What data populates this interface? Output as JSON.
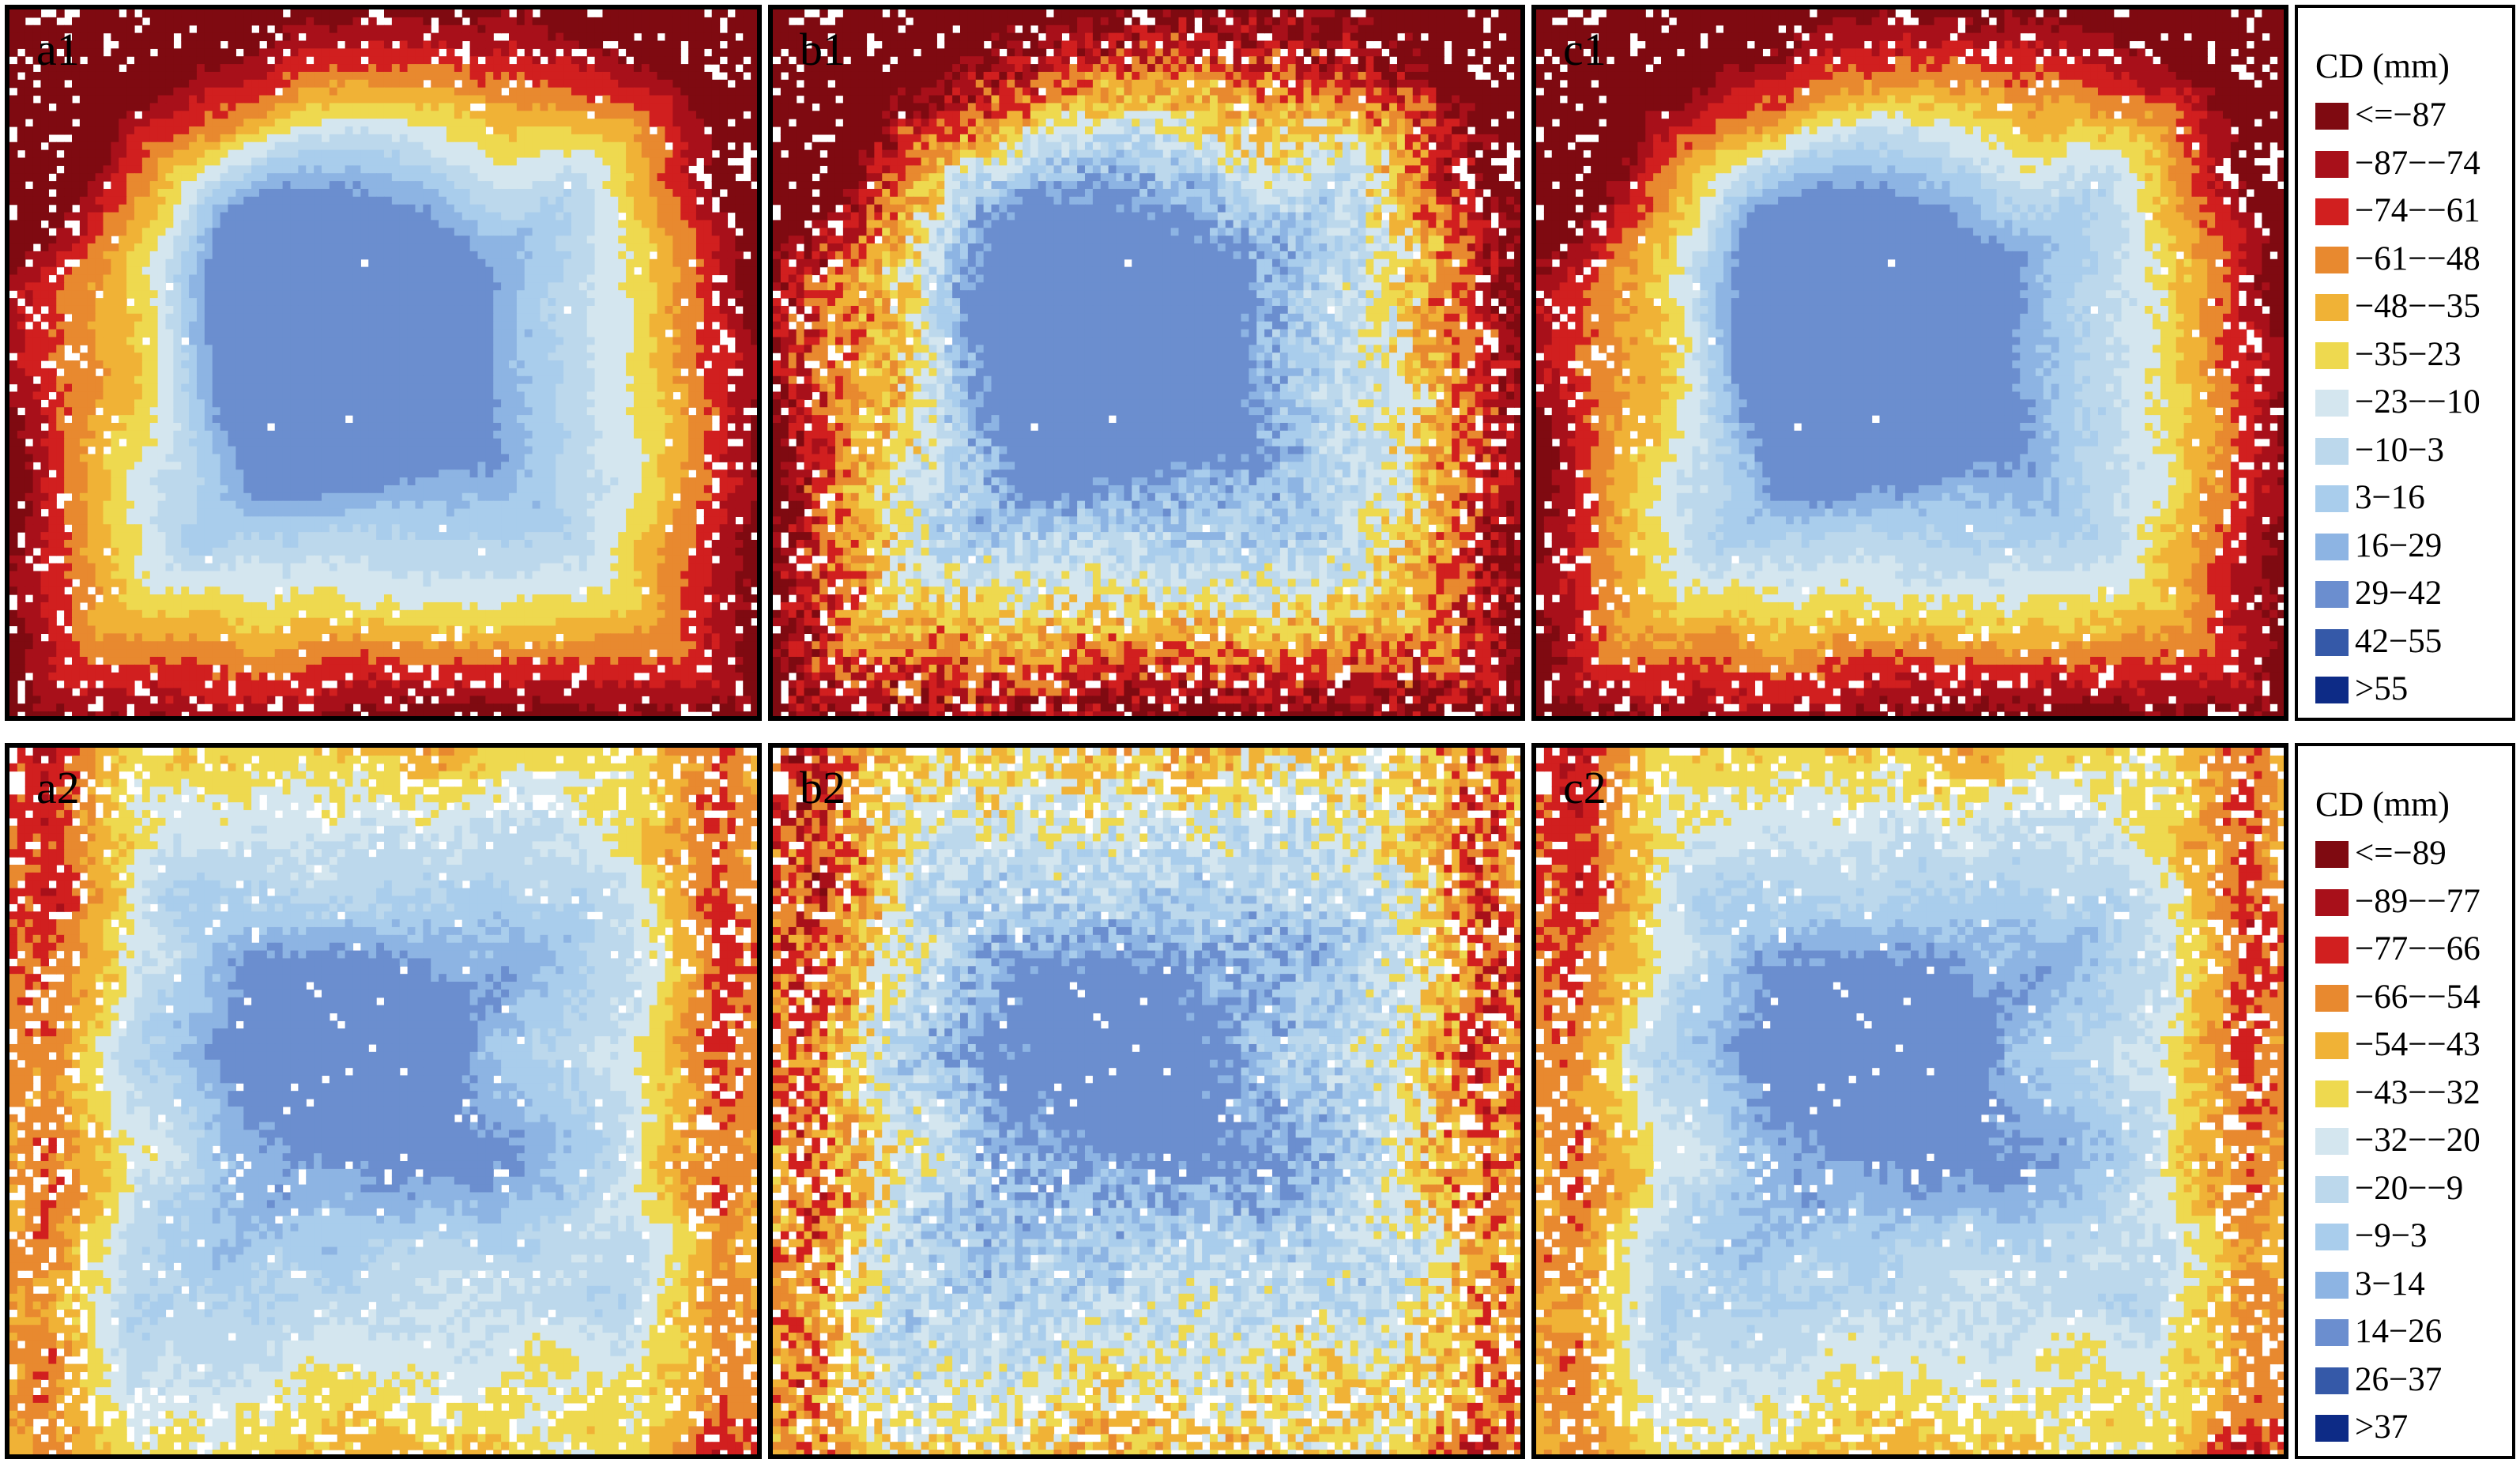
{
  "panels": [
    {
      "label": "a1",
      "row": 0,
      "col": 0,
      "scene": "top",
      "noise": 0.06
    },
    {
      "label": "b1",
      "row": 0,
      "col": 1,
      "scene": "top",
      "noise": 0.32
    },
    {
      "label": "c1",
      "row": 0,
      "col": 2,
      "scene": "top",
      "noise": 0.1
    },
    {
      "label": "a2",
      "row": 1,
      "col": 0,
      "scene": "bottom",
      "noise": 0.1
    },
    {
      "label": "b2",
      "row": 1,
      "col": 1,
      "scene": "bottom",
      "noise": 0.34
    },
    {
      "label": "c2",
      "row": 1,
      "col": 2,
      "scene": "bottom",
      "noise": 0.12
    }
  ],
  "legends": [
    {
      "title": "CD (mm)",
      "items": [
        {
          "label": "<=−87",
          "color": "#7f0a11"
        },
        {
          "label": "−87−−74",
          "color": "#a8101a"
        },
        {
          "label": "−74−−61",
          "color": "#d11f1f"
        },
        {
          "label": "−61−−48",
          "color": "#e8892f"
        },
        {
          "label": "−48−−35",
          "color": "#f0b236"
        },
        {
          "label": "−35−23",
          "color": "#eed94f"
        },
        {
          "label": "−23−−10",
          "color": "#d4e6ef"
        },
        {
          "label": "−10−3",
          "color": "#bcd8ec"
        },
        {
          "label": "3−16",
          "color": "#a9cdec"
        },
        {
          "label": "16−29",
          "color": "#8db4e3"
        },
        {
          "label": "29−42",
          "color": "#6b8ecf"
        },
        {
          "label": "42−55",
          "color": "#3559a8"
        },
        {
          "label": ">55",
          "color": "#0d2b86"
        }
      ]
    },
    {
      "title": "CD (mm)",
      "items": [
        {
          "label": "<=−89",
          "color": "#7f0a11"
        },
        {
          "label": "−89−−77",
          "color": "#a8101a"
        },
        {
          "label": "−77−−66",
          "color": "#d11f1f"
        },
        {
          "label": "−66−−54",
          "color": "#e8892f"
        },
        {
          "label": "−54−−43",
          "color": "#f0b236"
        },
        {
          "label": "−43−−32",
          "color": "#eed94f"
        },
        {
          "label": "−32−−20",
          "color": "#d4e6ef"
        },
        {
          "label": "−20−−9",
          "color": "#bcd8ec"
        },
        {
          "label": "−9−3",
          "color": "#a9cdec"
        },
        {
          "label": "3−14",
          "color": "#8db4e3"
        },
        {
          "label": "14−26",
          "color": "#6b8ecf"
        },
        {
          "label": "26−37",
          "color": "#3559a8"
        },
        {
          "label": ">37",
          "color": "#0d2b86"
        }
      ]
    }
  ]
}
